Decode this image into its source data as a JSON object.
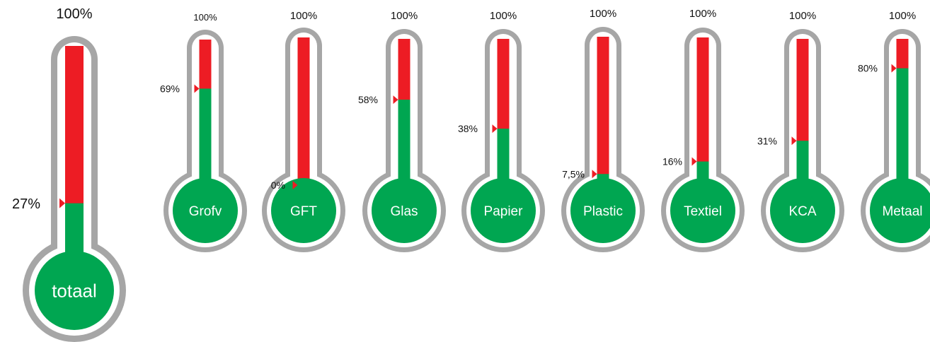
{
  "colors": {
    "outline": "#a6a6a6",
    "inner": "#ffffff",
    "filled": "#00a651",
    "remaining": "#ed1c24",
    "text": "#111111",
    "bulb_text": "#ffffff"
  },
  "chart_data": {
    "type": "thermometer",
    "max_label": "100%",
    "series": [
      {
        "name": "totaal",
        "value": 27,
        "value_label": "27%"
      },
      {
        "name": "Grofv",
        "value": 69,
        "value_label": "69%"
      },
      {
        "name": "GFT",
        "value": 0,
        "value_label": "0%"
      },
      {
        "name": "Glas",
        "value": 58,
        "value_label": "58%"
      },
      {
        "name": "Papier",
        "value": 38,
        "value_label": "38%"
      },
      {
        "name": "Plastic",
        "value": 7.5,
        "value_label": "7,5%"
      },
      {
        "name": "Textiel",
        "value": 16,
        "value_label": "16%"
      },
      {
        "name": "KCA",
        "value": 31,
        "value_label": "31%"
      },
      {
        "name": "Metaal",
        "value": 80,
        "value_label": "80%"
      }
    ]
  }
}
